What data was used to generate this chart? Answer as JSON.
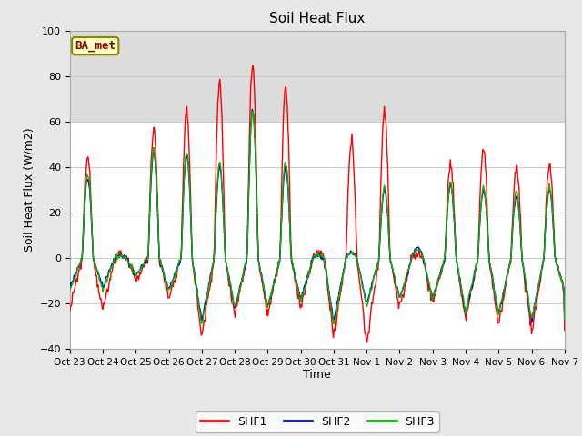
{
  "title": "Soil Heat Flux",
  "ylabel": "Soil Heat Flux (W/m2)",
  "xlabel": "Time",
  "n_days": 15,
  "ylim": [
    -40,
    100
  ],
  "yticks": [
    -40,
    -20,
    0,
    20,
    40,
    60,
    80,
    100
  ],
  "shaded_band": [
    60,
    100
  ],
  "colors": {
    "SHF1": "#FF0000",
    "SHF2": "#0000CC",
    "SHF3": "#00BB00"
  },
  "background_color": "#E8E8E8",
  "plot_bg_color": "#FFFFFF",
  "band_color": "#DCDCDC",
  "legend_label": "BA_met",
  "x_tick_labels": [
    "Oct 23",
    "Oct 24",
    "Oct 25",
    "Oct 26",
    "Oct 27",
    "Oct 28",
    "Oct 29",
    "Oct 30",
    "Oct 31",
    "Nov 1",
    "Nov 2",
    "Nov 3",
    "Nov 4",
    "Nov 5",
    "Nov 6",
    "Nov 7"
  ],
  "linewidth": 1.0,
  "peaks_shf1": [
    44,
    2,
    57,
    64,
    77,
    85,
    75,
    2,
    51,
    65,
    2,
    41,
    48,
    40,
    41
  ],
  "peaks_shf2": [
    35,
    1,
    46,
    45,
    40,
    65,
    40,
    1,
    2,
    30,
    5,
    32,
    30,
    27,
    30
  ],
  "peaks_shf3": [
    37,
    1,
    48,
    46,
    42,
    65,
    42,
    1,
    2,
    31,
    4,
    33,
    31,
    29,
    31
  ],
  "night_shf1": [
    -23,
    -10,
    -18,
    -35,
    -25,
    -25,
    -22,
    -35,
    -38,
    -22,
    -20,
    -27,
    -30,
    -33,
    -15
  ],
  "night_shf2": [
    -13,
    -8,
    -14,
    -28,
    -22,
    -22,
    -18,
    -28,
    -20,
    -18,
    -18,
    -25,
    -25,
    -28,
    -14
  ],
  "night_shf3": [
    -14,
    -8,
    -15,
    -30,
    -22,
    -22,
    -19,
    -30,
    -22,
    -18,
    -18,
    -24,
    -25,
    -27,
    -14
  ]
}
